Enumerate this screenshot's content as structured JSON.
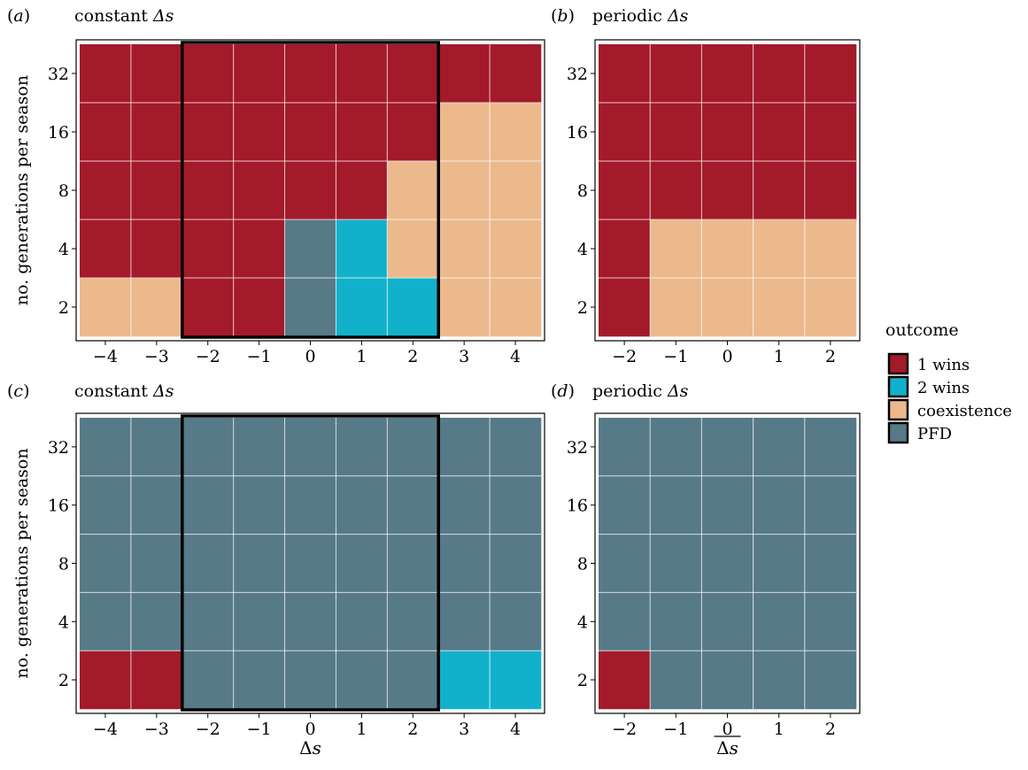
{
  "legend": {
    "title": "outcome",
    "placement": "right",
    "items": [
      {
        "key": "1wins",
        "label": "1 wins",
        "color": "#a31a2a"
      },
      {
        "key": "2wins",
        "label": "2 wins",
        "color": "#12b1cb"
      },
      {
        "key": "coexistence",
        "label": "coexistence",
        "color": "#ecb98c"
      },
      {
        "key": "pfd",
        "label": "PFD",
        "color": "#577a88"
      }
    ]
  },
  "chart_data": [
    {
      "type": "heatmap",
      "panel": "(a)",
      "title_text": "constant ",
      "title_math": "Δs",
      "ylabel": "no. generations per season",
      "xlabel": "",
      "x": [
        -4,
        -3,
        -2,
        -1,
        0,
        1,
        2,
        3,
        4
      ],
      "x_tick_labels": [
        "−4",
        "−3",
        "−2",
        "−1",
        "0",
        "1",
        "2",
        "3",
        "4"
      ],
      "y": [
        2,
        4,
        8,
        16,
        32
      ],
      "y_tick_labels": [
        "2",
        "4",
        "8",
        "16",
        "32"
      ],
      "highlight_x_range": [
        -2,
        2
      ],
      "grid": true,
      "cells": [
        [
          "coexistence",
          "coexistence",
          "1wins",
          "1wins",
          "pfd",
          "2wins",
          "2wins",
          "coexistence",
          "coexistence"
        ],
        [
          "1wins",
          "1wins",
          "1wins",
          "1wins",
          "pfd",
          "2wins",
          "coexistence",
          "coexistence",
          "coexistence"
        ],
        [
          "1wins",
          "1wins",
          "1wins",
          "1wins",
          "1wins",
          "1wins",
          "coexistence",
          "coexistence",
          "coexistence"
        ],
        [
          "1wins",
          "1wins",
          "1wins",
          "1wins",
          "1wins",
          "1wins",
          "1wins",
          "coexistence",
          "coexistence"
        ],
        [
          "1wins",
          "1wins",
          "1wins",
          "1wins",
          "1wins",
          "1wins",
          "1wins",
          "1wins",
          "1wins"
        ]
      ]
    },
    {
      "type": "heatmap",
      "panel": "(b)",
      "title_text": "periodic ",
      "title_math": "Δs",
      "ylabel": "",
      "xlabel": "",
      "x": [
        -2,
        -1,
        0,
        1,
        2
      ],
      "x_tick_labels": [
        "−2",
        "−1",
        "0",
        "1",
        "2"
      ],
      "y": [
        2,
        4,
        8,
        16,
        32
      ],
      "y_tick_labels": [
        "2",
        "4",
        "8",
        "16",
        "32"
      ],
      "highlight_x_range": null,
      "grid": true,
      "cells": [
        [
          "1wins",
          "coexistence",
          "coexistence",
          "coexistence",
          "coexistence"
        ],
        [
          "1wins",
          "coexistence",
          "coexistence",
          "coexistence",
          "coexistence"
        ],
        [
          "1wins",
          "1wins",
          "1wins",
          "1wins",
          "1wins"
        ],
        [
          "1wins",
          "1wins",
          "1wins",
          "1wins",
          "1wins"
        ],
        [
          "1wins",
          "1wins",
          "1wins",
          "1wins",
          "1wins"
        ]
      ]
    },
    {
      "type": "heatmap",
      "panel": "(c)",
      "title_text": "constant ",
      "title_math": "Δs",
      "ylabel": "no. generations per season",
      "xlabel": "Δs",
      "x": [
        -4,
        -3,
        -2,
        -1,
        0,
        1,
        2,
        3,
        4
      ],
      "x_tick_labels": [
        "−4",
        "−3",
        "−2",
        "−1",
        "0",
        "1",
        "2",
        "3",
        "4"
      ],
      "y": [
        2,
        4,
        8,
        16,
        32
      ],
      "y_tick_labels": [
        "2",
        "4",
        "8",
        "16",
        "32"
      ],
      "highlight_x_range": [
        -2,
        2
      ],
      "grid": true,
      "cells": [
        [
          "1wins",
          "1wins",
          "pfd",
          "pfd",
          "pfd",
          "pfd",
          "pfd",
          "2wins",
          "2wins"
        ],
        [
          "pfd",
          "pfd",
          "pfd",
          "pfd",
          "pfd",
          "pfd",
          "pfd",
          "pfd",
          "pfd"
        ],
        [
          "pfd",
          "pfd",
          "pfd",
          "pfd",
          "pfd",
          "pfd",
          "pfd",
          "pfd",
          "pfd"
        ],
        [
          "pfd",
          "pfd",
          "pfd",
          "pfd",
          "pfd",
          "pfd",
          "pfd",
          "pfd",
          "pfd"
        ],
        [
          "pfd",
          "pfd",
          "pfd",
          "pfd",
          "pfd",
          "pfd",
          "pfd",
          "pfd",
          "pfd"
        ]
      ]
    },
    {
      "type": "heatmap",
      "panel": "(d)",
      "title_text": "periodic ",
      "title_math": "Δs",
      "ylabel": "",
      "xlabel": "Δs",
      "xlabel_overline": true,
      "x": [
        -2,
        -1,
        0,
        1,
        2
      ],
      "x_tick_labels": [
        "−2",
        "−1",
        "0",
        "1",
        "2"
      ],
      "y": [
        2,
        4,
        8,
        16,
        32
      ],
      "y_tick_labels": [
        "2",
        "4",
        "8",
        "16",
        "32"
      ],
      "highlight_x_range": null,
      "grid": true,
      "cells": [
        [
          "1wins",
          "pfd",
          "pfd",
          "pfd",
          "pfd"
        ],
        [
          "pfd",
          "pfd",
          "pfd",
          "pfd",
          "pfd"
        ],
        [
          "pfd",
          "pfd",
          "pfd",
          "pfd",
          "pfd"
        ],
        [
          "pfd",
          "pfd",
          "pfd",
          "pfd",
          "pfd"
        ],
        [
          "pfd",
          "pfd",
          "pfd",
          "pfd",
          "pfd"
        ]
      ]
    }
  ]
}
